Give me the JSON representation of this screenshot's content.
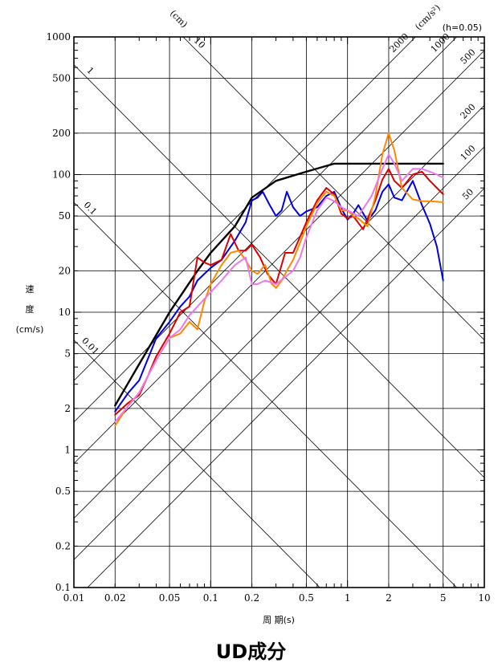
{
  "caption": "UD成分",
  "chart_data": {
    "type": "line",
    "scale": "tripartite log-log",
    "xlabel": "周 期(s)",
    "ylabel_chars": [
      "速",
      "度",
      "(cm/s)"
    ],
    "disp_unit": "(cm)",
    "acc_unit": "(cm/s²)",
    "damping": "(h=0.05)",
    "xlim": [
      0.01,
      10
    ],
    "ylim": [
      0.1,
      1000
    ],
    "x_ticks": [
      {
        "v": 0.01,
        "label": "0.01"
      },
      {
        "v": 0.02,
        "label": "0.02"
      },
      {
        "v": 0.05,
        "label": "0.05"
      },
      {
        "v": 0.1,
        "label": "0.1"
      },
      {
        "v": 0.2,
        "label": "0.2"
      },
      {
        "v": 0.5,
        "label": "0.5"
      },
      {
        "v": 1,
        "label": "1"
      },
      {
        "v": 2,
        "label": "2"
      },
      {
        "v": 5,
        "label": "5"
      },
      {
        "v": 10,
        "label": "10"
      }
    ],
    "y_ticks": [
      {
        "v": 0.1,
        "label": "0.1"
      },
      {
        "v": 0.2,
        "label": "0.2"
      },
      {
        "v": 0.5,
        "label": "0.5"
      },
      {
        "v": 1,
        "label": "1"
      },
      {
        "v": 2,
        "label": "2"
      },
      {
        "v": 5,
        "label": "5"
      },
      {
        "v": 10,
        "label": "10"
      },
      {
        "v": 20,
        "label": "20"
      },
      {
        "v": 50,
        "label": "50"
      },
      {
        "v": 100,
        "label": "100"
      },
      {
        "v": 200,
        "label": "200"
      },
      {
        "v": 500,
        "label": "500"
      },
      {
        "v": 1000,
        "label": "1000"
      }
    ],
    "disp_lines": [
      {
        "v": 0.01,
        "label": "0.01"
      },
      {
        "v": 0.1,
        "label": "0.1"
      },
      {
        "v": 1,
        "label": "1"
      },
      {
        "v": 10,
        "label": "10"
      }
    ],
    "acc_lines": [
      {
        "v": 50,
        "label": "50"
      },
      {
        "v": 100,
        "label": "100"
      },
      {
        "v": 200,
        "label": "200"
      },
      {
        "v": 500,
        "label": "500"
      },
      {
        "v": 1000,
        "label": "1000"
      },
      {
        "v": 2000,
        "label": "2000"
      }
    ],
    "series": [
      {
        "color": "#000000",
        "x": [
          0.02,
          0.03,
          0.05,
          0.08,
          0.1,
          0.15,
          0.2,
          0.3,
          0.5,
          0.8,
          1.0,
          2.0,
          3.0,
          5.0
        ],
        "y": [
          2.1,
          4.2,
          10,
          20,
          27,
          42,
          68,
          90,
          105,
          120,
          120,
          120,
          120,
          120
        ]
      },
      {
        "color": "#0000dd",
        "x": [
          0.02,
          0.025,
          0.03,
          0.04,
          0.05,
          0.06,
          0.07,
          0.08,
          0.1,
          0.12,
          0.15,
          0.18,
          0.2,
          0.22,
          0.24,
          0.27,
          0.3,
          0.33,
          0.36,
          0.4,
          0.45,
          0.5,
          0.6,
          0.7,
          0.8,
          0.9,
          1.0,
          1.1,
          1.2,
          1.4,
          1.6,
          1.8,
          2.0,
          2.2,
          2.5,
          3.0,
          3.5,
          4.0,
          4.5,
          5.0
        ],
        "y": [
          1.9,
          2.6,
          3.2,
          6.5,
          8.5,
          11,
          13,
          17,
          21,
          24,
          33,
          45,
          65,
          68,
          75,
          60,
          50,
          55,
          75,
          58,
          50,
          54,
          58,
          70,
          75,
          57,
          47,
          52,
          60,
          46,
          55,
          75,
          85,
          68,
          65,
          90,
          60,
          44,
          30,
          17
        ]
      },
      {
        "color": "#dd0000",
        "x": [
          0.02,
          0.025,
          0.03,
          0.035,
          0.04,
          0.05,
          0.06,
          0.07,
          0.08,
          0.09,
          0.1,
          0.12,
          0.14,
          0.16,
          0.18,
          0.2,
          0.23,
          0.26,
          0.3,
          0.35,
          0.4,
          0.5,
          0.6,
          0.7,
          0.8,
          0.9,
          1.0,
          1.1,
          1.3,
          1.6,
          1.8,
          2.0,
          2.2,
          2.5,
          3.0,
          3.5,
          4.0,
          5.0
        ],
        "y": [
          1.8,
          2.2,
          2.5,
          3.5,
          4.8,
          7,
          10,
          11,
          25,
          23,
          22,
          24,
          37,
          28,
          28,
          31,
          25,
          19,
          16,
          27,
          27,
          45,
          65,
          80,
          72,
          52,
          48,
          50,
          40,
          65,
          92,
          110,
          90,
          80,
          100,
          105,
          90,
          72
        ]
      },
      {
        "color": "#ff8800",
        "x": [
          0.02,
          0.025,
          0.03,
          0.04,
          0.05,
          0.06,
          0.07,
          0.08,
          0.09,
          0.1,
          0.12,
          0.14,
          0.16,
          0.18,
          0.2,
          0.22,
          0.25,
          0.28,
          0.3,
          0.33,
          0.36,
          0.4,
          0.45,
          0.5,
          0.6,
          0.7,
          0.8,
          0.9,
          1.0,
          1.1,
          1.2,
          1.4,
          1.6,
          1.8,
          2.0,
          2.2,
          2.5,
          3.0,
          3.5,
          4.0,
          5.0
        ],
        "y": [
          1.5,
          2.1,
          2.6,
          4.5,
          6.5,
          7,
          8.5,
          7.5,
          12,
          16,
          22,
          27,
          28,
          24,
          20,
          19,
          22,
          16,
          15,
          17,
          20,
          24,
          32,
          42,
          62,
          75,
          70,
          55,
          55,
          50,
          48,
          42,
          70,
          140,
          200,
          150,
          80,
          66,
          64,
          64,
          63
        ]
      },
      {
        "color": "#ee77ee",
        "x": [
          0.02,
          0.03,
          0.04,
          0.05,
          0.06,
          0.07,
          0.08,
          0.1,
          0.12,
          0.15,
          0.18,
          0.2,
          0.22,
          0.25,
          0.3,
          0.35,
          0.4,
          0.45,
          0.5,
          0.6,
          0.7,
          0.8,
          0.9,
          1.0,
          1.2,
          1.5,
          1.8,
          2.0,
          2.2,
          2.5,
          3.0,
          3.5,
          4.0,
          4.5,
          5.0
        ],
        "y": [
          1.6,
          2.6,
          4.5,
          6.5,
          7.5,
          9.5,
          11,
          14,
          17,
          22,
          25,
          16,
          16,
          17,
          16,
          18,
          20,
          25,
          35,
          55,
          68,
          64,
          58,
          55,
          50,
          70,
          110,
          140,
          120,
          90,
          110,
          110,
          105,
          100,
          95
        ]
      }
    ]
  }
}
